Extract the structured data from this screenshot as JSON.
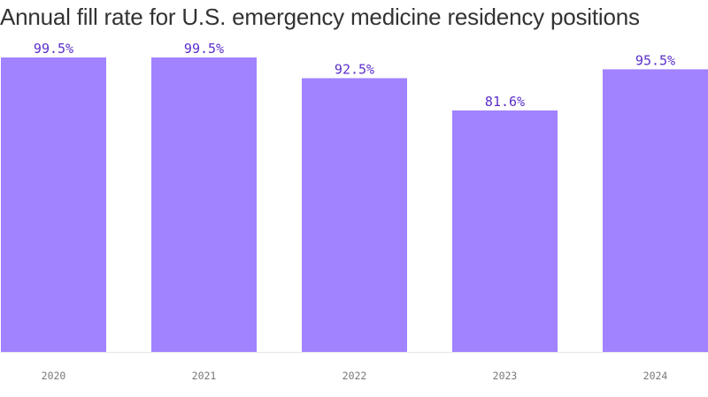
{
  "chart_data": {
    "type": "bar",
    "title": "Annual fill rate for U.S. emergency medicine residency positions",
    "categories": [
      "2020",
      "2021",
      "2022",
      "2023",
      "2024"
    ],
    "values": [
      99.5,
      99.5,
      92.5,
      81.6,
      95.5
    ],
    "value_labels": [
      "99.5%",
      "99.5%",
      "92.5%",
      "81.6%",
      "95.5%"
    ],
    "xlabel": "",
    "ylabel": "",
    "ylim": [
      0,
      100
    ],
    "grid": false,
    "colors": {
      "bar": "#a182ff",
      "label": "#5a2ec9",
      "tick": "#777777",
      "axis": "#e6e6e6",
      "title": "#333333"
    }
  }
}
